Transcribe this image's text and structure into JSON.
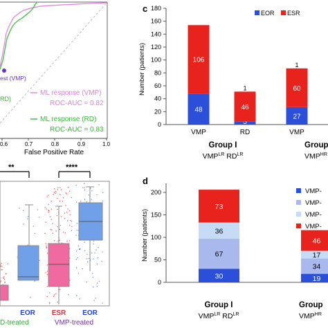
{
  "panels": {
    "c": "c",
    "d": "d"
  },
  "roc": {
    "xlabel": "False Positive Rate",
    "xticks": [
      "0.6",
      "0.7",
      "0.8",
      "0.9",
      "1.0"
    ],
    "point_label": "est (VMP)",
    "rd_label": "RD)",
    "legend_vmp_name": "ML response (VMP)",
    "legend_vmp_auc": "ROC-AUC = 0.82",
    "legend_rd_name": "ML response (RD)",
    "legend_rd_auc": "ROC-AUC = 0.83",
    "colors": {
      "vmp": "#e07fe0",
      "rd": "#33bb33",
      "point": "#6633cc"
    }
  },
  "boxplots": {
    "sig_left": "**",
    "sig_right": "****",
    "categories": [
      "ESR",
      "EOR",
      "EOR"
    ],
    "cut_left_label": "",
    "group_left": "D-treated",
    "group_right": "VMP-treated",
    "colors": {
      "esr": "#f06aa0",
      "eor": "#6fa0e8",
      "esr_label": "#e8303a",
      "eor_label": "#2244cc",
      "vmp_treated": "#7030a0"
    }
  },
  "chart_data": [
    {
      "type": "bar",
      "stacked": true,
      "ylabel": "Number (patients)",
      "ylim": [
        0,
        180
      ],
      "yticks": [
        0,
        20,
        40,
        60,
        80,
        100,
        120,
        140,
        160,
        180
      ],
      "categories": [
        "VMP",
        "RD",
        "VMP"
      ],
      "series": [
        {
          "name": "EOR",
          "color": "#2b4fd8",
          "values": [
            48,
            5,
            27
          ]
        },
        {
          "name": "ESR",
          "color": "#e8231e",
          "values": [
            106,
            46,
            60
          ]
        }
      ],
      "top_labels": [
        "",
        "1",
        "1"
      ],
      "group_labels": [
        {
          "title": "Group I",
          "sub": "VMP",
          "sup": "LR",
          "sub2": " RD",
          "sup2": "LR"
        },
        {
          "title": "Group",
          "sub": "VMP",
          "sup": "HR",
          "sub2": "",
          "sup2": ""
        }
      ],
      "legend_placement": "top-right"
    },
    {
      "type": "bar",
      "stacked": true,
      "ylabel": "Number (patients)",
      "ylim": [
        0,
        220
      ],
      "yticks": [
        0,
        50,
        100,
        150,
        200
      ],
      "categories": [
        "Group I",
        "Group"
      ],
      "series": [
        {
          "name": "VMP-",
          "color": "#2b4fd8",
          "values": [
            30,
            19
          ]
        },
        {
          "name": "VMP-",
          "color": "#a9b9ee",
          "values": [
            67,
            34
          ]
        },
        {
          "name": "VMP-",
          "color": "#c6dcf6",
          "values": [
            36,
            17
          ]
        },
        {
          "name": "VMP-",
          "color": "#e8231e",
          "values": [
            73,
            46
          ]
        }
      ],
      "group_labels": [
        {
          "title": "Group I",
          "sub": "VMP",
          "sup": "LR",
          "sub2": " RD",
          "sup2": "LR"
        },
        {
          "title": "Group",
          "sub": "VMP",
          "sup": "HR",
          "sub2": "",
          "sup2": ""
        }
      ],
      "legend_placement": "top-right"
    }
  ]
}
